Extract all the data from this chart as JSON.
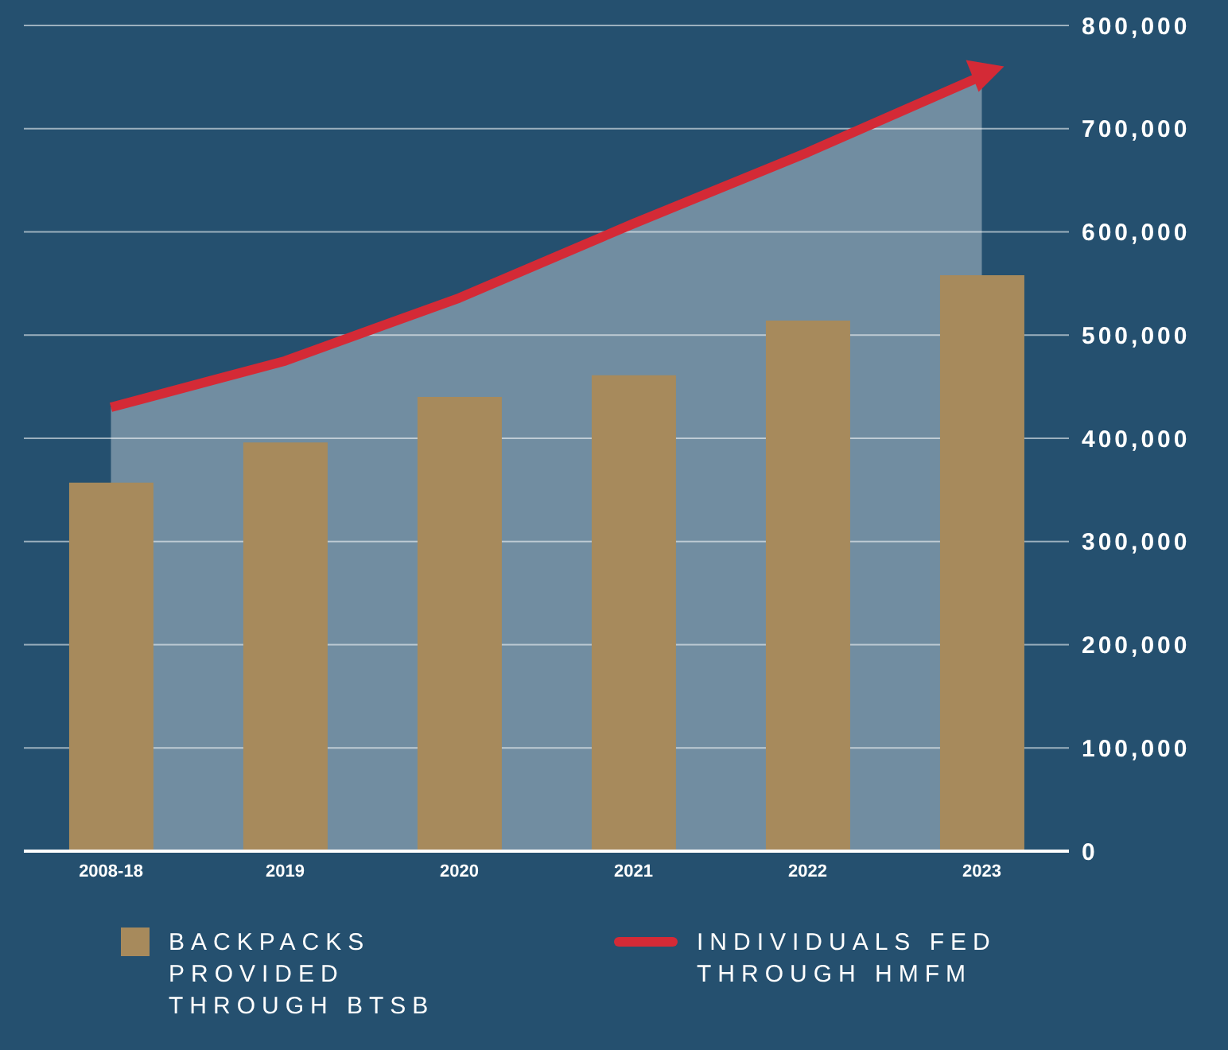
{
  "chart_data": {
    "type": "bar",
    "categories": [
      "2008-18",
      "2019",
      "2020",
      "2021",
      "2022",
      "2023"
    ],
    "series": [
      {
        "name": "BACKPACKS PROVIDED THROUGH BTSB",
        "color": "#a78a5c",
        "values": [
          357000,
          396000,
          440000,
          461000,
          514000,
          558000
        ]
      },
      {
        "name": "INDIVIDUALS FED THROUGH HMFM",
        "type": "area",
        "color": "#d42a36",
        "values": [
          430000,
          475000,
          536000,
          608000,
          677000,
          751000
        ]
      }
    ],
    "ylim": [
      0,
      800000
    ],
    "yticks": [
      0,
      {
        "value": 100000,
        "label": "100,000"
      },
      {
        "value": 200000,
        "label": "200,000"
      },
      {
        "value": 300000,
        "label": "300,000"
      },
      {
        "value": 400000,
        "label": "400,000"
      },
      {
        "value": 500000,
        "label": "500,000"
      },
      {
        "value": 600000,
        "label": "600,000"
      },
      {
        "value": 700000,
        "label": "700,000"
      },
      {
        "value": 800000,
        "label": "800,000"
      }
    ],
    "grid": "y",
    "legend": "bottom",
    "marker": "none"
  }
}
